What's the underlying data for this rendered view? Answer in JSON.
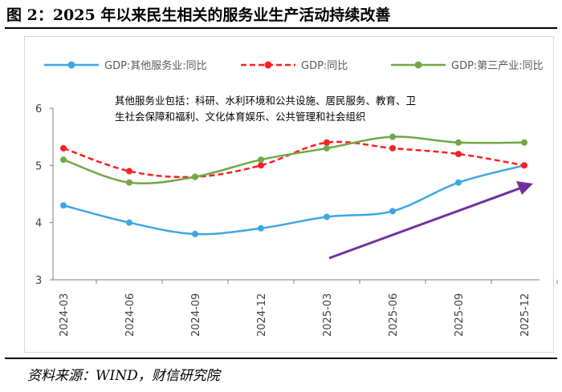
{
  "title": "图 2：2025 年以来民生相关的服务业生产活动持续改善",
  "source": "资料来源：WIND，财信研究院",
  "chart_data": {
    "type": "line",
    "title": "",
    "xlabel": "",
    "ylabel": "",
    "categories": [
      "2024-03",
      "2024-06",
      "2024-09",
      "2024-12",
      "2025-03",
      "2025-06",
      "2025-09",
      "2025-12"
    ],
    "ylim": [
      3,
      6
    ],
    "yticks": [
      3,
      4,
      5,
      6
    ],
    "grid": false,
    "legend": "top",
    "annotation_lines": [
      "其他服务业包括：科研、水利环境和公共设施、居民服务、教育、卫",
      "生社会保障和福利、文化体育娱乐、公共管理和社会组织"
    ],
    "series": [
      {
        "name": "GDP:其他服务业:同比",
        "color": "#3ea6e6",
        "style": "solid",
        "values": [
          4.3,
          4.0,
          3.8,
          3.9,
          4.1,
          4.2,
          4.7,
          5.0
        ]
      },
      {
        "name": "GDP:同比",
        "color": "#ff1f1f",
        "style": "dashed",
        "values": [
          5.3,
          4.9,
          4.8,
          5.0,
          5.4,
          5.3,
          5.2,
          5.0
        ]
      },
      {
        "name": "GDP:第三产业:同比",
        "color": "#70a845",
        "style": "solid",
        "values": [
          5.1,
          4.7,
          4.8,
          5.1,
          5.3,
          5.5,
          5.4,
          5.4
        ]
      }
    ],
    "trend_arrow_color": "#7030a0"
  }
}
